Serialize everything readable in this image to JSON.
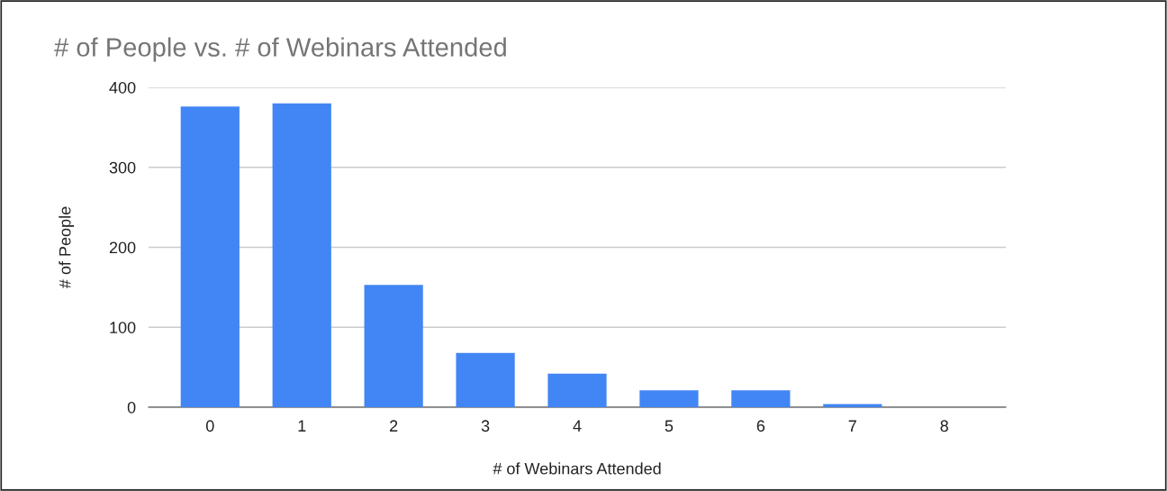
{
  "chart_data": {
    "type": "bar",
    "title": "# of People vs. # of Webinars Attended",
    "xlabel": "# of Webinars Attended",
    "ylabel": "# of People",
    "categories": [
      "0",
      "1",
      "2",
      "3",
      "4",
      "5",
      "6",
      "7",
      "8"
    ],
    "values": [
      376,
      380,
      153,
      68,
      42,
      21,
      21,
      4,
      0
    ],
    "color": "#4285f4",
    "ylim": [
      0,
      400
    ],
    "yticks": [
      0,
      100,
      200,
      300,
      400
    ],
    "grid": "y",
    "legend": false
  }
}
